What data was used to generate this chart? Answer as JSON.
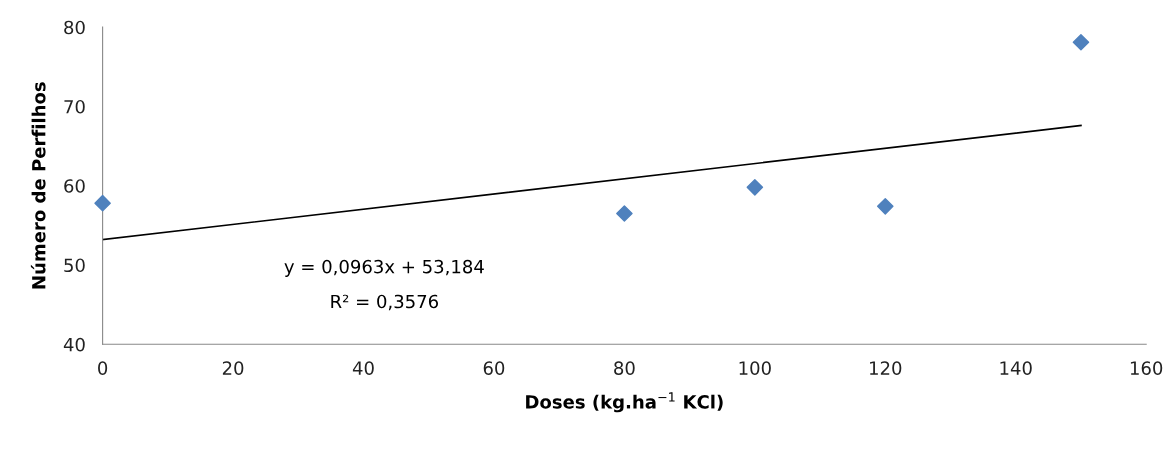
{
  "chart_data": {
    "type": "scatter",
    "xlabel": "Doses (kg.ha$^{−1}$ KCl)",
    "ylabel": "Número de Perfilhos",
    "x": [
      0,
      80,
      100,
      120,
      150
    ],
    "series": [
      {
        "color": "#4f81bd",
        "marker": "diamond",
        "values": [
          57.8,
          56.5,
          59.8,
          57.4,
          78.1
        ]
      },
      {
        "type": "line",
        "color": "#000000",
        "marker": "none",
        "line_style": "solid",
        "x": [
          0,
          150
        ],
        "values": [
          53.2,
          67.6
        ]
      }
    ],
    "xlim": [
      0,
      160
    ],
    "xticks": [
      0,
      20,
      40,
      60,
      80,
      100,
      120,
      140,
      160
    ],
    "ylim": [
      40,
      80
    ],
    "yticks": [
      40,
      50,
      60,
      70,
      80
    ],
    "annotations": [
      "y = 0,0963x + 53,184",
      "R² = 0,3576"
    ],
    "grid": false,
    "legend": false
  }
}
